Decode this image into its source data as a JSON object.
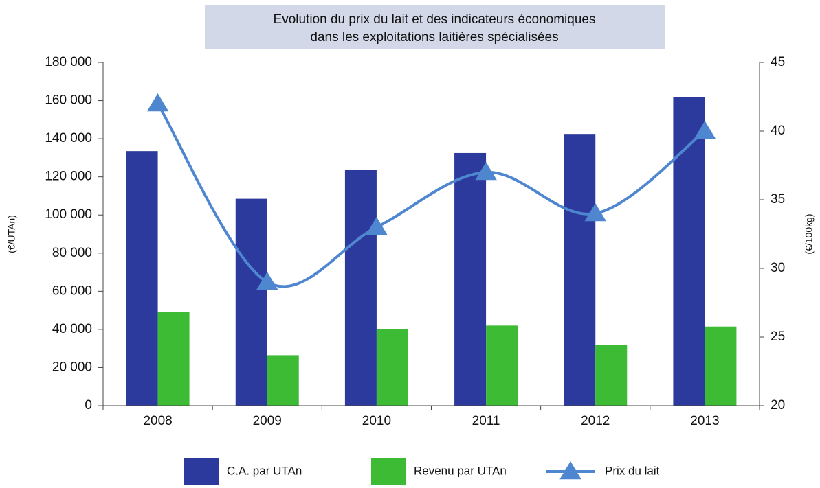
{
  "chart_data": {
    "type": "bar",
    "title": [
      "Evolution du prix du lait et des indicateurs économiques",
      "dans les exploitations laitières spécialisées"
    ],
    "y_label": "(€/UTAn)",
    "y2_label": "(€/100kg)",
    "categories": [
      "2008",
      "2009",
      "2010",
      "2011",
      "2012",
      "2013"
    ],
    "series": [
      {
        "name": "C.A. par UTAn",
        "type": "bar",
        "color": "#2b3a9c",
        "values": [
          133500,
          108500,
          123500,
          132500,
          142500,
          162000
        ]
      },
      {
        "name": "Revenu par UTAn",
        "type": "bar",
        "color": "#3dbb35",
        "values": [
          49000,
          26500,
          40000,
          42000,
          32000,
          41500
        ]
      },
      {
        "name": "Prix du lait",
        "type": "line",
        "axis": "y2",
        "color": "#4f86d0",
        "values": [
          42,
          29,
          33,
          37,
          34,
          40
        ]
      }
    ],
    "ylim": [
      0,
      180000
    ],
    "yticks": [
      0,
      {
        "value": 20000,
        "label": "20 000"
      },
      {
        "value": 40000,
        "label": "40 000"
      },
      {
        "value": 60000,
        "label": "60 000"
      },
      {
        "value": 80000,
        "label": "80 000"
      },
      {
        "value": 100000,
        "label": "100 000"
      },
      {
        "value": 120000,
        "label": "120 000"
      },
      {
        "value": 140000,
        "label": "140 000"
      },
      {
        "value": 160000,
        "label": "160 000"
      },
      {
        "value": 180000,
        "label": "180 000"
      }
    ],
    "y2lim": [
      20,
      45
    ],
    "y2ticks": [
      20,
      25,
      30,
      35,
      40,
      45
    ],
    "legend": "bottom"
  }
}
